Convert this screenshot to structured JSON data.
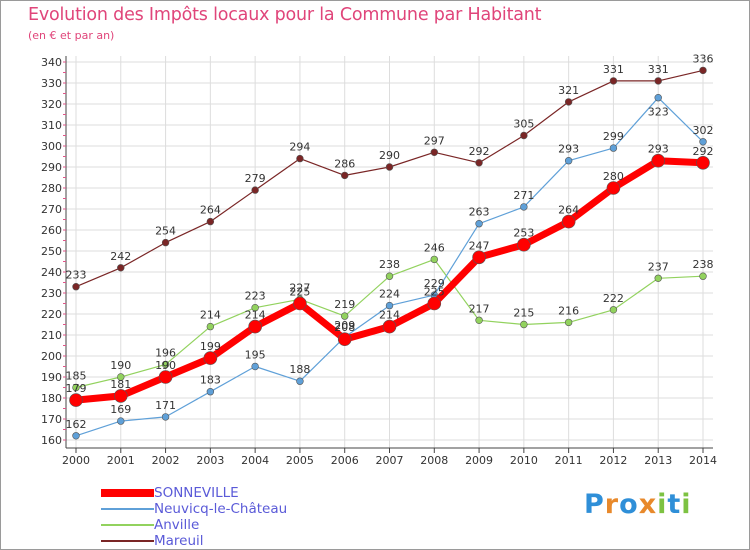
{
  "header": {
    "title": "Evolution des Impôts locaux pour la Commune par Habitant",
    "subtitle": "(en € et par an)"
  },
  "logo": {
    "text": "Proxiti",
    "letters": [
      "P",
      "r",
      "o",
      "x",
      "i",
      "t",
      "i"
    ],
    "letter_colors": [
      "#2f8fd8",
      "#e8892b",
      "#2f8fd8",
      "#e8892b",
      "#7dc242",
      "#2f8fd8",
      "#7dc242"
    ]
  },
  "chart_data": {
    "type": "line",
    "title": "Evolution des Impôts locaux pour la Commune par Habitant",
    "subtitle": "(en € et par an)",
    "xlabel": "",
    "ylabel": "",
    "x": [
      "2000",
      "2001",
      "2002",
      "2003",
      "2004",
      "2005",
      "2006",
      "2007",
      "2008",
      "2009",
      "2010",
      "2011",
      "2012",
      "2013",
      "2014"
    ],
    "ylim": [
      160,
      340
    ],
    "yticks": [
      160,
      170,
      180,
      190,
      200,
      210,
      220,
      230,
      240,
      250,
      260,
      270,
      280,
      290,
      300,
      310,
      320,
      330,
      340
    ],
    "grid": true,
    "legend_position": "bottom-left",
    "series": [
      {
        "name": "Mareuil",
        "color": "#7a2626",
        "values": [
          233,
          242,
          254,
          264,
          279,
          294,
          286,
          290,
          297,
          292,
          305,
          321,
          331,
          331,
          336
        ],
        "labels": [
          "233",
          "242",
          "254",
          "264",
          "279",
          "294",
          "286",
          "290",
          "297",
          "292",
          "305",
          "321",
          "331",
          "331",
          "336"
        ],
        "label_pos": [
          "above",
          "above",
          "above",
          "above",
          "above",
          "above",
          "above",
          "above",
          "above",
          "above",
          "above",
          "above",
          "above",
          "above",
          "above"
        ]
      },
      {
        "name": "Anville",
        "color": "#92d25e",
        "values": [
          185,
          190,
          196,
          214,
          223,
          227,
          219,
          238,
          246,
          217,
          215,
          216,
          222,
          237,
          238
        ],
        "labels": [
          "185",
          "190",
          "196",
          "214",
          "223",
          "227",
          "219",
          "238",
          "246",
          "217",
          "215",
          "216",
          "222",
          "237",
          "238"
        ],
        "label_pos": [
          "above",
          "above",
          "above",
          "above",
          "above",
          "above",
          "above",
          "above",
          "above",
          "above",
          "above",
          "above",
          "above",
          "above",
          "above"
        ]
      },
      {
        "name": "Neuvicq-le-Château",
        "color": "#5fa0d8",
        "values": [
          162,
          169,
          171,
          183,
          195,
          188,
          209,
          224,
          229,
          263,
          271,
          293,
          299,
          323,
          302
        ],
        "labels": [
          "162",
          "169",
          "171",
          "183",
          "195",
          "188",
          "209",
          "224",
          "229",
          "263",
          "271",
          "293",
          "299",
          "323",
          "302"
        ],
        "label_pos": [
          "above",
          "above",
          "above",
          "above",
          "above",
          "above",
          "above",
          "above",
          "above",
          "above",
          "above",
          "above",
          "above",
          "below",
          "above"
        ]
      },
      {
        "name": "SONNEVILLE",
        "color": "#ff0000",
        "values": [
          179,
          181,
          190,
          199,
          214,
          225,
          208,
          214,
          225,
          247,
          253,
          264,
          280,
          293,
          292
        ],
        "labels": [
          "179",
          "181",
          "190",
          "199",
          "214",
          "225",
          "208",
          "214",
          "225",
          "247",
          "253",
          "264",
          "280",
          "293",
          "292"
        ],
        "label_pos": [
          "above",
          "above",
          "above",
          "above",
          "above",
          "above",
          "above",
          "above",
          "above",
          "above",
          "above",
          "above",
          "above",
          "above",
          "above"
        ]
      }
    ],
    "legend_order": [
      "SONNEVILLE",
      "Neuvicq-le-Château",
      "Anville",
      "Mareuil"
    ]
  }
}
